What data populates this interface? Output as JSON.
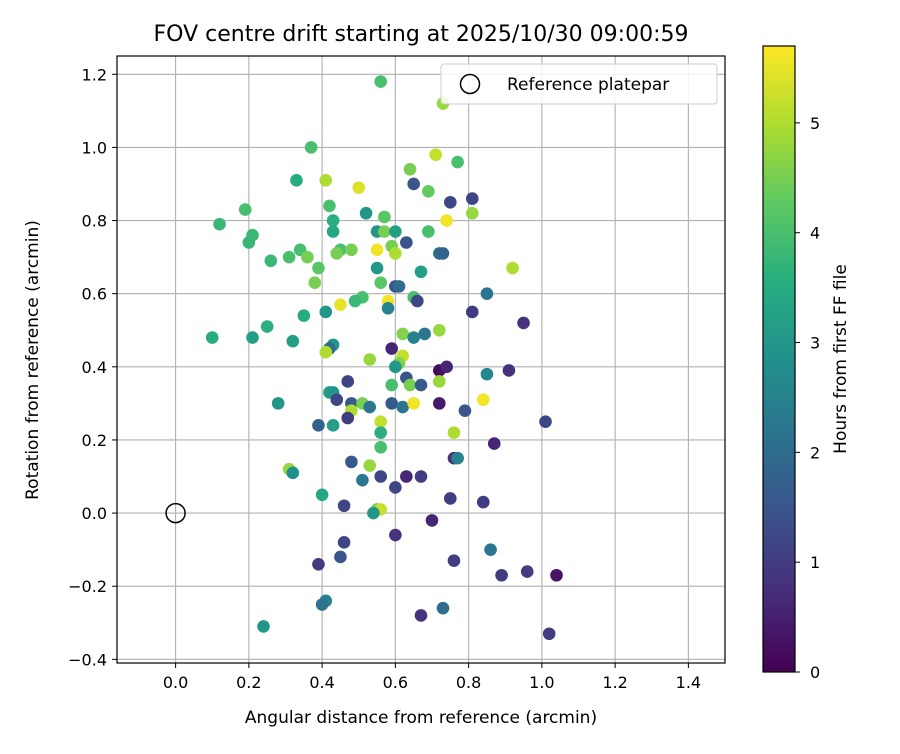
{
  "chart_data": {
    "type": "scatter",
    "title": "FOV centre drift starting at 2025/10/30 09:00:59",
    "xlabel": "Angular distance from reference (arcmin)",
    "ylabel": "Rotation from reference (arcmin)",
    "xlim": [
      -0.16,
      1.5
    ],
    "ylim": [
      -0.41,
      1.25
    ],
    "xticks": [
      "0.0",
      "0.2",
      "0.4",
      "0.6",
      "0.8",
      "1.0",
      "1.2",
      "1.4"
    ],
    "xtick_values": [
      0.0,
      0.2,
      0.4,
      0.6,
      0.8,
      1.0,
      1.2,
      1.4
    ],
    "yticks": [
      "−0.4",
      "−0.2",
      "0.0",
      "0.2",
      "0.4",
      "0.6",
      "0.8",
      "1.0",
      "1.2"
    ],
    "ytick_values": [
      -0.4,
      -0.2,
      0.0,
      0.2,
      0.4,
      0.6,
      0.8,
      1.0,
      1.2
    ],
    "grid": true,
    "legend": {
      "label": "Reference platepar",
      "placement": "top-right"
    },
    "reference_point": {
      "x": 0.0,
      "y": 0.0
    },
    "colorbar": {
      "label": "Hours from first FF file",
      "range": [
        0,
        5.7
      ],
      "ticks": [
        "0",
        "1",
        "2",
        "3",
        "4",
        "5"
      ],
      "tick_values": [
        0,
        1,
        2,
        3,
        4,
        5
      ],
      "colormap": "viridis"
    },
    "series": [
      {
        "name": "drift",
        "points": [
          [
            0.56,
            1.18,
            4.0
          ],
          [
            0.73,
            1.12,
            4.8
          ],
          [
            0.71,
            0.98,
            5.2
          ],
          [
            0.37,
            1.0,
            4.0
          ],
          [
            0.77,
            0.96,
            4.0
          ],
          [
            0.64,
            0.94,
            4.5
          ],
          [
            0.33,
            0.91,
            3.5
          ],
          [
            0.41,
            0.91,
            5.0
          ],
          [
            0.5,
            0.89,
            5.4
          ],
          [
            0.65,
            0.9,
            1.5
          ],
          [
            0.69,
            0.88,
            4.3
          ],
          [
            0.81,
            0.86,
            1.2
          ],
          [
            0.75,
            0.85,
            1.2
          ],
          [
            0.19,
            0.83,
            4.0
          ],
          [
            0.42,
            0.84,
            4.0
          ],
          [
            0.52,
            0.82,
            3.0
          ],
          [
            0.57,
            0.81,
            4.2
          ],
          [
            0.81,
            0.82,
            4.8
          ],
          [
            0.12,
            0.79,
            3.8
          ],
          [
            0.43,
            0.8,
            3.6
          ],
          [
            0.74,
            0.8,
            5.6
          ],
          [
            0.55,
            0.77,
            3.0
          ],
          [
            0.57,
            0.77,
            4.5
          ],
          [
            0.6,
            0.77,
            3.2
          ],
          [
            0.43,
            0.77,
            3.4
          ],
          [
            0.69,
            0.77,
            4.0
          ],
          [
            0.21,
            0.76,
            3.8
          ],
          [
            0.2,
            0.74,
            3.8
          ],
          [
            0.63,
            0.74,
            1.5
          ],
          [
            0.59,
            0.73,
            4.5
          ],
          [
            0.45,
            0.72,
            4.0
          ],
          [
            0.48,
            0.72,
            4.5
          ],
          [
            0.34,
            0.72,
            4.0
          ],
          [
            0.31,
            0.7,
            4.0
          ],
          [
            0.36,
            0.7,
            4.5
          ],
          [
            0.44,
            0.71,
            4.5
          ],
          [
            0.6,
            0.71,
            5.0
          ],
          [
            0.55,
            0.72,
            5.6
          ],
          [
            0.72,
            0.71,
            2.0
          ],
          [
            0.73,
            0.71,
            1.8
          ],
          [
            0.26,
            0.69,
            3.8
          ],
          [
            0.39,
            0.67,
            4.2
          ],
          [
            0.55,
            0.67,
            3.0
          ],
          [
            0.67,
            0.66,
            3.2
          ],
          [
            0.92,
            0.67,
            5.0
          ],
          [
            0.56,
            0.63,
            4.2
          ],
          [
            0.38,
            0.63,
            4.5
          ],
          [
            0.6,
            0.62,
            1.5
          ],
          [
            0.61,
            0.62,
            2.0
          ],
          [
            0.85,
            0.6,
            2.2
          ],
          [
            0.65,
            0.59,
            4.0
          ],
          [
            0.66,
            0.58,
            1.2
          ],
          [
            0.51,
            0.59,
            4.0
          ],
          [
            0.49,
            0.58,
            3.8
          ],
          [
            0.58,
            0.58,
            5.6
          ],
          [
            0.45,
            0.57,
            5.5
          ],
          [
            0.58,
            0.56,
            2.5
          ],
          [
            0.81,
            0.55,
            1.0
          ],
          [
            0.41,
            0.55,
            3.0
          ],
          [
            0.35,
            0.54,
            3.5
          ],
          [
            0.25,
            0.51,
            3.6
          ],
          [
            0.95,
            0.52,
            0.8
          ],
          [
            0.1,
            0.48,
            3.5
          ],
          [
            0.21,
            0.48,
            3.2
          ],
          [
            0.62,
            0.49,
            4.6
          ],
          [
            0.65,
            0.48,
            2.5
          ],
          [
            0.68,
            0.49,
            2.2
          ],
          [
            0.72,
            0.5,
            4.8
          ],
          [
            0.32,
            0.47,
            3.2
          ],
          [
            0.43,
            0.46,
            3.0
          ],
          [
            0.42,
            0.45,
            2.0
          ],
          [
            0.41,
            0.44,
            5.0
          ],
          [
            0.59,
            0.45,
            0.6
          ],
          [
            0.62,
            0.43,
            5.2
          ],
          [
            0.53,
            0.42,
            4.8
          ],
          [
            0.61,
            0.41,
            4.6
          ],
          [
            0.72,
            0.39,
            0.2
          ],
          [
            0.74,
            0.4,
            0.6
          ],
          [
            0.91,
            0.39,
            0.8
          ],
          [
            0.85,
            0.38,
            2.6
          ],
          [
            0.6,
            0.4,
            3.0
          ],
          [
            0.63,
            0.37,
            1.5
          ],
          [
            0.47,
            0.36,
            1.2
          ],
          [
            0.59,
            0.35,
            4.0
          ],
          [
            0.64,
            0.35,
            4.5
          ],
          [
            0.67,
            0.35,
            1.6
          ],
          [
            0.72,
            0.36,
            4.8
          ],
          [
            0.42,
            0.33,
            3.2
          ],
          [
            0.43,
            0.33,
            3.0
          ],
          [
            0.28,
            0.3,
            3.0
          ],
          [
            0.44,
            0.31,
            1.2
          ],
          [
            0.48,
            0.3,
            1.6
          ],
          [
            0.51,
            0.3,
            4.5
          ],
          [
            0.53,
            0.29,
            2.2
          ],
          [
            0.59,
            0.3,
            1.6
          ],
          [
            0.62,
            0.29,
            2.2
          ],
          [
            0.65,
            0.3,
            5.6
          ],
          [
            0.72,
            0.3,
            0.4
          ],
          [
            0.79,
            0.28,
            1.5
          ],
          [
            0.84,
            0.31,
            5.6
          ],
          [
            0.48,
            0.28,
            5.0
          ],
          [
            0.47,
            0.26,
            1.0
          ],
          [
            0.56,
            0.25,
            5.2
          ],
          [
            0.43,
            0.24,
            3.2
          ],
          [
            0.39,
            0.24,
            1.8
          ],
          [
            0.56,
            0.22,
            3.6
          ],
          [
            0.76,
            0.22,
            5.0
          ],
          [
            0.87,
            0.19,
            0.6
          ],
          [
            1.01,
            0.25,
            1.2
          ],
          [
            0.76,
            0.15,
            0.8
          ],
          [
            0.77,
            0.15,
            2.5
          ],
          [
            0.31,
            0.12,
            4.8
          ],
          [
            0.32,
            0.11,
            2.8
          ],
          [
            0.48,
            0.14,
            1.6
          ],
          [
            0.53,
            0.13,
            4.8
          ],
          [
            0.56,
            0.18,
            4.0
          ],
          [
            0.56,
            0.1,
            1.2
          ],
          [
            0.63,
            0.1,
            0.6
          ],
          [
            0.67,
            0.1,
            1.0
          ],
          [
            0.51,
            0.09,
            2.2
          ],
          [
            0.6,
            0.07,
            1.2
          ],
          [
            0.4,
            0.05,
            3.4
          ],
          [
            0.75,
            0.04,
            1.0
          ],
          [
            0.84,
            0.03,
            1.0
          ],
          [
            0.46,
            0.02,
            1.2
          ],
          [
            0.55,
            0.01,
            4.5
          ],
          [
            0.56,
            0.01,
            5.2
          ],
          [
            0.54,
            0.0,
            3.0
          ],
          [
            0.7,
            -0.02,
            0.6
          ],
          [
            0.6,
            -0.06,
            0.8
          ],
          [
            0.46,
            -0.08,
            1.2
          ],
          [
            0.86,
            -0.1,
            2.2
          ],
          [
            0.45,
            -0.12,
            1.5
          ],
          [
            0.76,
            -0.13,
            1.0
          ],
          [
            0.39,
            -0.14,
            1.0
          ],
          [
            0.89,
            -0.17,
            1.0
          ],
          [
            0.96,
            -0.16,
            1.0
          ],
          [
            1.04,
            -0.17,
            0.3
          ],
          [
            0.41,
            -0.24,
            2.5
          ],
          [
            0.4,
            -0.25,
            2.2
          ],
          [
            0.73,
            -0.26,
            2.0
          ],
          [
            0.24,
            -0.31,
            3.0
          ],
          [
            0.67,
            -0.28,
            0.8
          ],
          [
            1.02,
            -0.33,
            1.0
          ]
        ]
      }
    ]
  }
}
